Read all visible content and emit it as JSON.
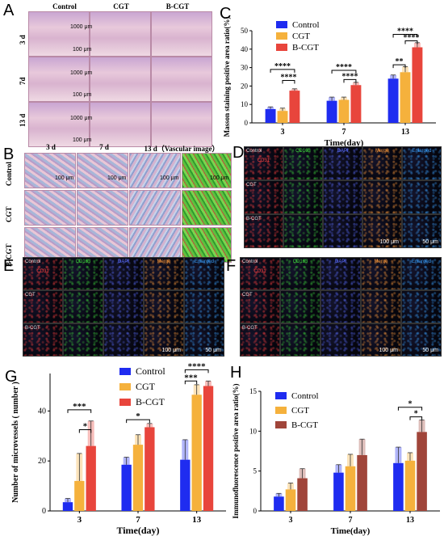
{
  "panels": {
    "A": {
      "letter": "A",
      "columns": [
        "Control",
        "CGT",
        "B-CGT"
      ],
      "rows": [
        "3 d",
        "7d",
        "13 d"
      ],
      "scale_big": "1000 μm",
      "scale_small": "100 μm"
    },
    "B": {
      "letter": "B",
      "columns": [
        "3 d",
        "7 d",
        "13 d（Vascular image）"
      ],
      "rows": [
        "Control",
        "CGT",
        "B-CGT"
      ],
      "scale": "100 μm"
    },
    "C": {
      "letter": "C"
    },
    "D": {
      "letter": "D",
      "rows": [
        "Control",
        "CGT",
        "B-CGT"
      ],
      "channels": [
        "CD31",
        "CD163",
        "DAPI",
        "Merge",
        "Enlarged"
      ],
      "scale_a": "100 μm",
      "scale_b": "50 μm"
    },
    "E": {
      "letter": "E",
      "rows": [
        "Control",
        "CGT",
        "B-CGT"
      ],
      "channels": [
        "CD31",
        "CD163",
        "DAPI",
        "Merge",
        "Enlarged"
      ],
      "scale_a": "100 μm",
      "scale_b": "50 μm"
    },
    "F": {
      "letter": "F",
      "rows": [
        "Control",
        "CGT",
        "B-CGT"
      ],
      "channels": [
        "CD31",
        "CD163",
        "DAPI",
        "Merge",
        "Enlarged"
      ],
      "scale_a": "100 μm",
      "scale_b": "50 μm"
    },
    "G": {
      "letter": "G"
    },
    "H": {
      "letter": "H"
    }
  },
  "colors": {
    "control": "#1f2cf0",
    "cgt": "#f5b13c",
    "bcgt": "#e8453c",
    "bcgt_h": "#a0453a",
    "cd31": "#ff4040",
    "cd163": "#3cd23c",
    "dapi": "#5a6cff",
    "merge": "#ff9a3c",
    "enlarged": "#3aa0ff"
  },
  "chart_data": [
    {
      "type": "bar",
      "panel": "C",
      "categories": [
        "3",
        "7",
        "13"
      ],
      "xlabel": "Time(day)",
      "ylabel": "Masson staining positive area ratio(%)",
      "ylim": [
        0,
        50
      ],
      "yticks": [
        "0",
        "10",
        "20",
        "30",
        "40",
        "50"
      ],
      "legend_position": "top-left",
      "series": [
        {
          "name": "Control",
          "values": [
            7.5,
            12,
            24
          ],
          "errors": [
            1.2,
            2,
            2
          ]
        },
        {
          "name": "CGT",
          "values": [
            6.5,
            12.5,
            27.5
          ],
          "errors": [
            1.5,
            1.5,
            3
          ]
        },
        {
          "name": "B-CGT",
          "values": [
            17.5,
            20.5,
            41
          ],
          "errors": [
            1,
            1.5,
            2.5
          ]
        }
      ],
      "significance": [
        "****",
        "****",
        "****",
        "****",
        "****",
        "****",
        "**"
      ]
    },
    {
      "type": "bar",
      "panel": "G",
      "categories": [
        "3",
        "7",
        "13"
      ],
      "xlabel": "Time(day)",
      "ylabel": "Number of microvessels ( number )",
      "ylim": [
        0,
        55
      ],
      "yticks": [
        "0",
        "20",
        "40"
      ],
      "legend_position": "top-left",
      "series": [
        {
          "name": "Control",
          "values": [
            3.5,
            18.5,
            20.5
          ],
          "errors": [
            1.5,
            3,
            8
          ]
        },
        {
          "name": "CGT",
          "values": [
            12,
            26.5,
            46.5
          ],
          "errors": [
            11,
            4,
            4
          ]
        },
        {
          "name": "B-CGT",
          "values": [
            26,
            33.5,
            50
          ],
          "errors": [
            10,
            1.5,
            2
          ]
        }
      ],
      "significance": [
        "***",
        "*",
        "*",
        "****",
        "***"
      ]
    },
    {
      "type": "bar",
      "panel": "H",
      "categories": [
        "3",
        "7",
        "13"
      ],
      "xlabel": "Time(day)",
      "ylabel": "Immunofluorescence positive area ratio(%)",
      "ylim": [
        0,
        15
      ],
      "yticks": [
        "0",
        "5",
        "10",
        "15"
      ],
      "legend_position": "top-left",
      "series": [
        {
          "name": "Control",
          "values": [
            1.8,
            4.8,
            6
          ],
          "errors": [
            0.4,
            1,
            2
          ]
        },
        {
          "name": "CGT",
          "values": [
            2.7,
            5.6,
            6.3
          ],
          "errors": [
            0.8,
            1.5,
            1
          ]
        },
        {
          "name": "B-CGT",
          "values": [
            4.1,
            7,
            9.9
          ],
          "errors": [
            1.2,
            2,
            1.5
          ]
        }
      ],
      "significance": [
        "*",
        "*"
      ]
    }
  ]
}
